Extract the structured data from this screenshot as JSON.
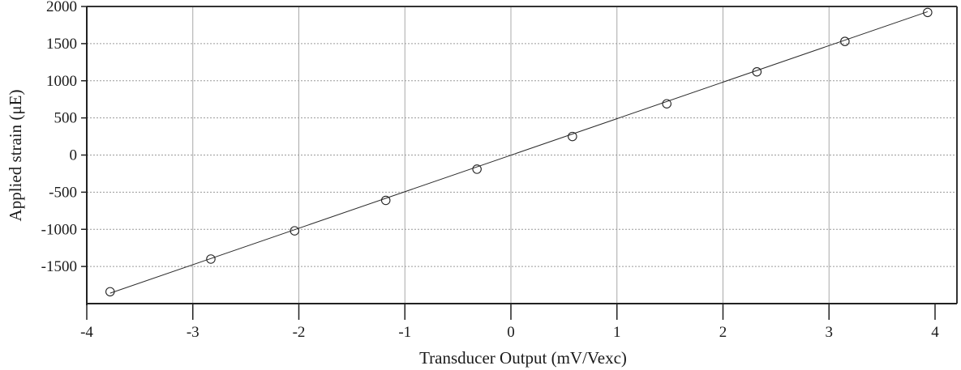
{
  "chart_data": {
    "type": "scatter",
    "title": "",
    "xlabel": "Transducer Output (mV/Vexc)",
    "ylabel": "Applied strain (μE)",
    "xlim": [
      -4,
      4
    ],
    "ylim": [
      -2000,
      2000
    ],
    "x_ticks": [
      -4,
      -3,
      -2,
      -1,
      0,
      1,
      2,
      3,
      4
    ],
    "y_ticks": [
      -1500,
      -1000,
      -500,
      0,
      500,
      1000,
      1500,
      2000
    ],
    "x_tick_labels": [
      "-4",
      "-3",
      "-2",
      "-1",
      "0",
      "1",
      "2",
      "3",
      "4"
    ],
    "y_tick_labels": [
      "-1500",
      "-1000",
      "-500",
      "0",
      "500",
      "1000",
      "1500",
      "2000"
    ],
    "grid": true,
    "legend": "none",
    "series": [
      {
        "style": "open-circle-markers",
        "x": [
          -3.78,
          -2.83,
          -2.04,
          -1.18,
          -0.32,
          0.58,
          1.47,
          2.32,
          3.15,
          3.93
        ],
        "y": [
          -1840,
          -1400,
          -1020,
          -610,
          -190,
          250,
          690,
          1120,
          1530,
          1920
        ]
      },
      {
        "style": "linear-fit-line",
        "x": [
          -3.78,
          3.93
        ],
        "y": [
          -1860,
          1930
        ]
      }
    ]
  }
}
